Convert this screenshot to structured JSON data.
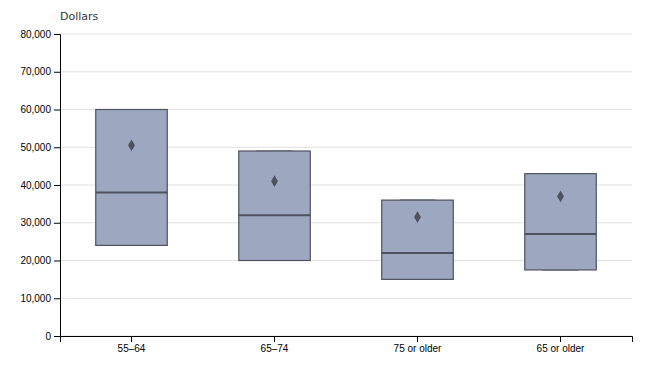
{
  "chart_data": {
    "type": "box",
    "ylabel": "Dollars",
    "categories": [
      "55–64",
      "65–74",
      "75 or older",
      "65 or older"
    ],
    "boxes": [
      {
        "q1": 24000,
        "median": 38000,
        "q3": 60000,
        "whislo": 24000,
        "whishi": 60000,
        "mean": 50500
      },
      {
        "q1": 20000,
        "median": 32000,
        "q3": 49000,
        "whislo": 20000,
        "whishi": 49000,
        "mean": 41000
      },
      {
        "q1": 15000,
        "median": 22000,
        "q3": 36000,
        "whislo": 15000,
        "whishi": 36000,
        "mean": 31500
      },
      {
        "q1": 17500,
        "median": 27000,
        "q3": 43000,
        "whislo": 17500,
        "whishi": 43000,
        "mean": 37000
      }
    ],
    "color": "#9DA8C0",
    "ylim": [
      0,
      80000
    ],
    "yticks": [
      0,
      {
        "value": 10000,
        "label": "10,000"
      },
      {
        "value": 20000,
        "label": "20,000"
      },
      {
        "value": 30000,
        "label": "30,000"
      },
      {
        "value": 40000,
        "label": "40,000"
      },
      {
        "value": 50000,
        "label": "50,000"
      },
      {
        "value": 60000,
        "label": "60,000"
      },
      {
        "value": 70000,
        "label": "70,000"
      },
      {
        "value": 80000,
        "label": "80,000"
      }
    ],
    "grid": true
  }
}
